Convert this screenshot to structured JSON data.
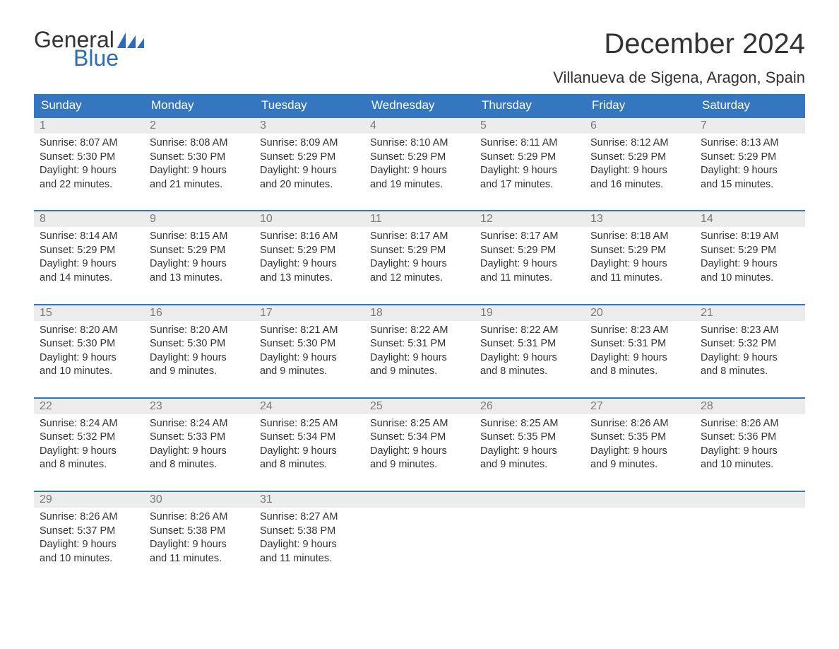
{
  "logo": {
    "text_general": "General",
    "text_blue": "Blue",
    "flag_color": "#2d6bb5"
  },
  "title": "December 2024",
  "location": "Villanueva de Sigena, Aragon, Spain",
  "colors": {
    "header_bg": "#3576c0",
    "header_text": "#ffffff",
    "daynum_bg": "#ececec",
    "daynum_text": "#7a7a7a",
    "body_text": "#333333",
    "week_border": "#3576c0"
  },
  "day_headers": [
    "Sunday",
    "Monday",
    "Tuesday",
    "Wednesday",
    "Thursday",
    "Friday",
    "Saturday"
  ],
  "weeks": [
    [
      {
        "n": "1",
        "sunrise": "Sunrise: 8:07 AM",
        "sunset": "Sunset: 5:30 PM",
        "daylight1": "Daylight: 9 hours",
        "daylight2": "and 22 minutes."
      },
      {
        "n": "2",
        "sunrise": "Sunrise: 8:08 AM",
        "sunset": "Sunset: 5:30 PM",
        "daylight1": "Daylight: 9 hours",
        "daylight2": "and 21 minutes."
      },
      {
        "n": "3",
        "sunrise": "Sunrise: 8:09 AM",
        "sunset": "Sunset: 5:29 PM",
        "daylight1": "Daylight: 9 hours",
        "daylight2": "and 20 minutes."
      },
      {
        "n": "4",
        "sunrise": "Sunrise: 8:10 AM",
        "sunset": "Sunset: 5:29 PM",
        "daylight1": "Daylight: 9 hours",
        "daylight2": "and 19 minutes."
      },
      {
        "n": "5",
        "sunrise": "Sunrise: 8:11 AM",
        "sunset": "Sunset: 5:29 PM",
        "daylight1": "Daylight: 9 hours",
        "daylight2": "and 17 minutes."
      },
      {
        "n": "6",
        "sunrise": "Sunrise: 8:12 AM",
        "sunset": "Sunset: 5:29 PM",
        "daylight1": "Daylight: 9 hours",
        "daylight2": "and 16 minutes."
      },
      {
        "n": "7",
        "sunrise": "Sunrise: 8:13 AM",
        "sunset": "Sunset: 5:29 PM",
        "daylight1": "Daylight: 9 hours",
        "daylight2": "and 15 minutes."
      }
    ],
    [
      {
        "n": "8",
        "sunrise": "Sunrise: 8:14 AM",
        "sunset": "Sunset: 5:29 PM",
        "daylight1": "Daylight: 9 hours",
        "daylight2": "and 14 minutes."
      },
      {
        "n": "9",
        "sunrise": "Sunrise: 8:15 AM",
        "sunset": "Sunset: 5:29 PM",
        "daylight1": "Daylight: 9 hours",
        "daylight2": "and 13 minutes."
      },
      {
        "n": "10",
        "sunrise": "Sunrise: 8:16 AM",
        "sunset": "Sunset: 5:29 PM",
        "daylight1": "Daylight: 9 hours",
        "daylight2": "and 13 minutes."
      },
      {
        "n": "11",
        "sunrise": "Sunrise: 8:17 AM",
        "sunset": "Sunset: 5:29 PM",
        "daylight1": "Daylight: 9 hours",
        "daylight2": "and 12 minutes."
      },
      {
        "n": "12",
        "sunrise": "Sunrise: 8:17 AM",
        "sunset": "Sunset: 5:29 PM",
        "daylight1": "Daylight: 9 hours",
        "daylight2": "and 11 minutes."
      },
      {
        "n": "13",
        "sunrise": "Sunrise: 8:18 AM",
        "sunset": "Sunset: 5:29 PM",
        "daylight1": "Daylight: 9 hours",
        "daylight2": "and 11 minutes."
      },
      {
        "n": "14",
        "sunrise": "Sunrise: 8:19 AM",
        "sunset": "Sunset: 5:29 PM",
        "daylight1": "Daylight: 9 hours",
        "daylight2": "and 10 minutes."
      }
    ],
    [
      {
        "n": "15",
        "sunrise": "Sunrise: 8:20 AM",
        "sunset": "Sunset: 5:30 PM",
        "daylight1": "Daylight: 9 hours",
        "daylight2": "and 10 minutes."
      },
      {
        "n": "16",
        "sunrise": "Sunrise: 8:20 AM",
        "sunset": "Sunset: 5:30 PM",
        "daylight1": "Daylight: 9 hours",
        "daylight2": "and 9 minutes."
      },
      {
        "n": "17",
        "sunrise": "Sunrise: 8:21 AM",
        "sunset": "Sunset: 5:30 PM",
        "daylight1": "Daylight: 9 hours",
        "daylight2": "and 9 minutes."
      },
      {
        "n": "18",
        "sunrise": "Sunrise: 8:22 AM",
        "sunset": "Sunset: 5:31 PM",
        "daylight1": "Daylight: 9 hours",
        "daylight2": "and 9 minutes."
      },
      {
        "n": "19",
        "sunrise": "Sunrise: 8:22 AM",
        "sunset": "Sunset: 5:31 PM",
        "daylight1": "Daylight: 9 hours",
        "daylight2": "and 8 minutes."
      },
      {
        "n": "20",
        "sunrise": "Sunrise: 8:23 AM",
        "sunset": "Sunset: 5:31 PM",
        "daylight1": "Daylight: 9 hours",
        "daylight2": "and 8 minutes."
      },
      {
        "n": "21",
        "sunrise": "Sunrise: 8:23 AM",
        "sunset": "Sunset: 5:32 PM",
        "daylight1": "Daylight: 9 hours",
        "daylight2": "and 8 minutes."
      }
    ],
    [
      {
        "n": "22",
        "sunrise": "Sunrise: 8:24 AM",
        "sunset": "Sunset: 5:32 PM",
        "daylight1": "Daylight: 9 hours",
        "daylight2": "and 8 minutes."
      },
      {
        "n": "23",
        "sunrise": "Sunrise: 8:24 AM",
        "sunset": "Sunset: 5:33 PM",
        "daylight1": "Daylight: 9 hours",
        "daylight2": "and 8 minutes."
      },
      {
        "n": "24",
        "sunrise": "Sunrise: 8:25 AM",
        "sunset": "Sunset: 5:34 PM",
        "daylight1": "Daylight: 9 hours",
        "daylight2": "and 8 minutes."
      },
      {
        "n": "25",
        "sunrise": "Sunrise: 8:25 AM",
        "sunset": "Sunset: 5:34 PM",
        "daylight1": "Daylight: 9 hours",
        "daylight2": "and 9 minutes."
      },
      {
        "n": "26",
        "sunrise": "Sunrise: 8:25 AM",
        "sunset": "Sunset: 5:35 PM",
        "daylight1": "Daylight: 9 hours",
        "daylight2": "and 9 minutes."
      },
      {
        "n": "27",
        "sunrise": "Sunrise: 8:26 AM",
        "sunset": "Sunset: 5:35 PM",
        "daylight1": "Daylight: 9 hours",
        "daylight2": "and 9 minutes."
      },
      {
        "n": "28",
        "sunrise": "Sunrise: 8:26 AM",
        "sunset": "Sunset: 5:36 PM",
        "daylight1": "Daylight: 9 hours",
        "daylight2": "and 10 minutes."
      }
    ],
    [
      {
        "n": "29",
        "sunrise": "Sunrise: 8:26 AM",
        "sunset": "Sunset: 5:37 PM",
        "daylight1": "Daylight: 9 hours",
        "daylight2": "and 10 minutes."
      },
      {
        "n": "30",
        "sunrise": "Sunrise: 8:26 AM",
        "sunset": "Sunset: 5:38 PM",
        "daylight1": "Daylight: 9 hours",
        "daylight2": "and 11 minutes."
      },
      {
        "n": "31",
        "sunrise": "Sunrise: 8:27 AM",
        "sunset": "Sunset: 5:38 PM",
        "daylight1": "Daylight: 9 hours",
        "daylight2": "and 11 minutes."
      },
      {
        "n": "",
        "sunrise": "",
        "sunset": "",
        "daylight1": "",
        "daylight2": ""
      },
      {
        "n": "",
        "sunrise": "",
        "sunset": "",
        "daylight1": "",
        "daylight2": ""
      },
      {
        "n": "",
        "sunrise": "",
        "sunset": "",
        "daylight1": "",
        "daylight2": ""
      },
      {
        "n": "",
        "sunrise": "",
        "sunset": "",
        "daylight1": "",
        "daylight2": ""
      }
    ]
  ]
}
